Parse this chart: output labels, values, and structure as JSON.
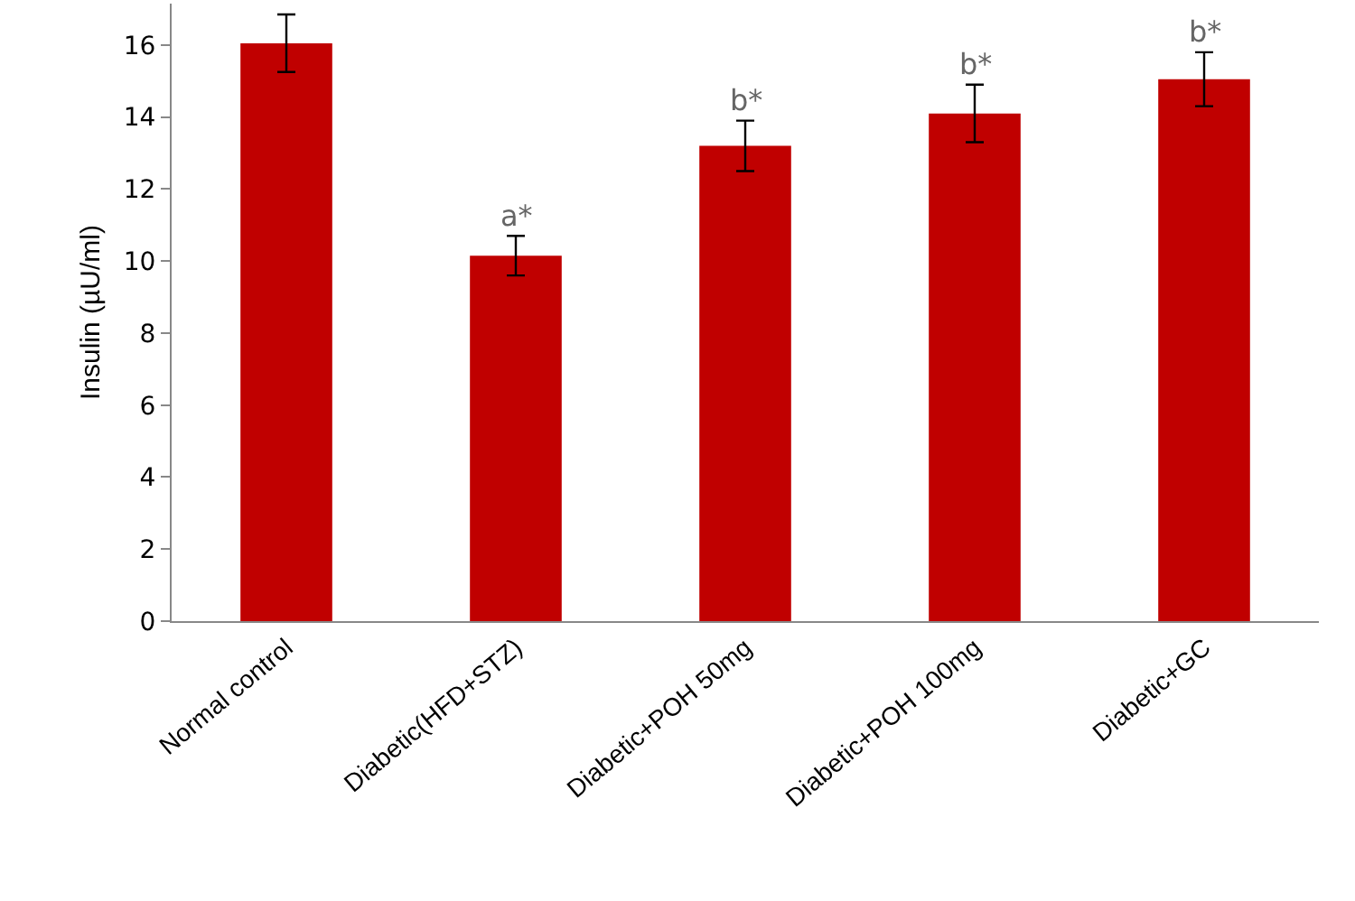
{
  "chart_data": {
    "type": "bar",
    "ylabel": "Insulin (µU/ml)",
    "categories": [
      "Normal control",
      "Diabetic(HFD+STZ)",
      "Diabetic+POH 50mg",
      "Diabetic+POH 100mg",
      "Diabetic+GC"
    ],
    "values": [
      16.05,
      10.15,
      13.2,
      14.1,
      15.05
    ],
    "errors": [
      0.8,
      0.55,
      0.7,
      0.8,
      0.75
    ],
    "color": "#c00000",
    "ylim": [
      0,
      17.15
    ],
    "yticks": [
      0,
      2,
      4,
      6,
      8,
      10,
      12,
      14,
      16
    ],
    "annotations": [
      {
        "text": "a*",
        "x": "Diabetic(HFD+STZ)",
        "y": 10.7
      },
      {
        "text": "b*",
        "x": "Diabetic+POH 50mg",
        "y": 13.9
      },
      {
        "text": "b*",
        "x": "Diabetic+POH 100mg",
        "y": 14.9
      },
      {
        "text": "b*",
        "x": "Diabetic+GC",
        "y": 15.8
      }
    ],
    "grid": false
  }
}
